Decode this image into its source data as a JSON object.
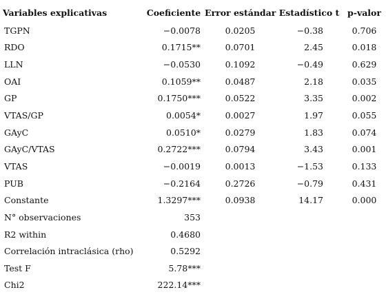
{
  "table": {
    "headers": [
      "Variables explicativas",
      "Coeficiente",
      "Error estándar",
      "Estadístico t",
      "p-valor"
    ],
    "rows": [
      {
        "variable": "TGPN",
        "coeficiente": "−0.0078",
        "error": "0.0205",
        "t": "−0.38",
        "p": "0.706"
      },
      {
        "variable": "RDO",
        "coeficiente": "0.1715**",
        "error": "0.0701",
        "t": "2.45",
        "p": "0.018"
      },
      {
        "variable": "LLN",
        "coeficiente": "−0.0530",
        "error": "0.1092",
        "t": "−0.49",
        "p": "0.629"
      },
      {
        "variable": "OAI",
        "coeficiente": "0.1059**",
        "error": "0.0487",
        "t": "2.18",
        "p": "0.035"
      },
      {
        "variable": "GP",
        "coeficiente": "0.1750***",
        "error": "0.0522",
        "t": "3.35",
        "p": "0.002"
      },
      {
        "variable": "VTAS/GP",
        "coeficiente": "0.0054*",
        "error": "0.0027",
        "t": "1.97",
        "p": "0.055"
      },
      {
        "variable": "GAyC",
        "coeficiente": "0.0510*",
        "error": "0.0279",
        "t": "1.83",
        "p": "0.074"
      },
      {
        "variable": "GAyC/VTAS",
        "coeficiente": "0.2722***",
        "error": "0.0794",
        "t": "3.43",
        "p": "0.001"
      },
      {
        "variable": "VTAS",
        "coeficiente": "−0.0019",
        "error": "0.0013",
        "t": "−1.53",
        "p": "0.133"
      },
      {
        "variable": "PUB",
        "coeficiente": "−0.2164",
        "error": "0.2726",
        "t": "−0.79",
        "p": "0.431"
      },
      {
        "variable": "Constante",
        "coeficiente": "1.3297***",
        "error": "0.0938",
        "t": "14.17",
        "p": "0.000"
      }
    ],
    "stats": [
      {
        "label": "N° observaciones",
        "value": "353"
      },
      {
        "label": "R2 within",
        "value": "0.4680"
      },
      {
        "label": "Correlación intraclásica (rho)",
        "value": "0.5292"
      },
      {
        "label": "Test F",
        "value": "5.78***"
      },
      {
        "label": "Chi2",
        "value": "222.14***"
      }
    ]
  }
}
